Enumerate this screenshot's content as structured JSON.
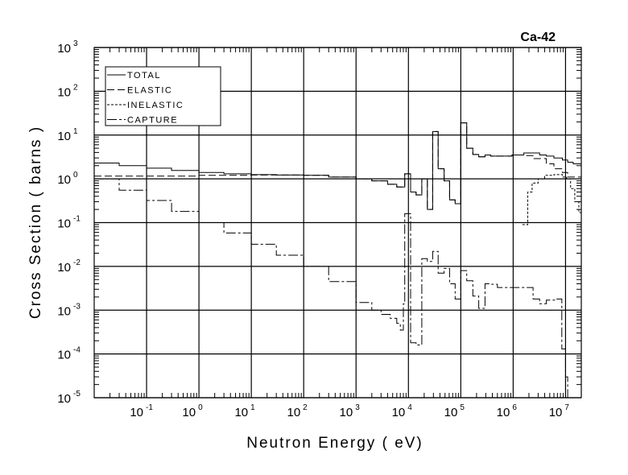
{
  "chart_data": {
    "type": "line",
    "title": "Ca-42",
    "xlabel": "Neutron Energy ( eV)",
    "ylabel": "Cross Section ( barns )",
    "xscale": "log",
    "yscale": "log",
    "xlim": [
      0.01,
      20000000
    ],
    "ylim": [
      1e-05,
      1000
    ],
    "x_ticks": [
      {
        "base": "10",
        "exp": "-1",
        "value": 0.1
      },
      {
        "base": "10",
        "exp": "0",
        "value": 1
      },
      {
        "base": "10",
        "exp": "1",
        "value": 10
      },
      {
        "base": "10",
        "exp": "2",
        "value": 100
      },
      {
        "base": "10",
        "exp": "3",
        "value": 1000
      },
      {
        "base": "10",
        "exp": "4",
        "value": 10000
      },
      {
        "base": "10",
        "exp": "5",
        "value": 100000
      },
      {
        "base": "10",
        "exp": "6",
        "value": 1000000
      },
      {
        "base": "10",
        "exp": "7",
        "value": 10000000
      }
    ],
    "y_ticks": [
      {
        "base": "10",
        "exp": "3",
        "value": 1000
      },
      {
        "base": "10",
        "exp": "2",
        "value": 100
      },
      {
        "base": "10",
        "exp": "1",
        "value": 10
      },
      {
        "base": "10",
        "exp": "0",
        "value": 1
      },
      {
        "base": "10",
        "exp": "-1",
        "value": 0.1
      },
      {
        "base": "10",
        "exp": "-2",
        "value": 0.01
      },
      {
        "base": "10",
        "exp": "-3",
        "value": 0.001
      },
      {
        "base": "10",
        "exp": "-4",
        "value": 0.0001
      },
      {
        "base": "10",
        "exp": "-5",
        "value": 1e-05
      }
    ],
    "grid": true,
    "legend_position": "top-left",
    "series": [
      {
        "name": "TOTAL",
        "style": "solid",
        "points": [
          [
            0.01,
            2.3
          ],
          [
            0.03,
            2.0
          ],
          [
            0.1,
            1.75
          ],
          [
            0.3,
            1.55
          ],
          [
            1,
            1.4
          ],
          [
            3,
            1.3
          ],
          [
            10,
            1.25
          ],
          [
            30,
            1.22
          ],
          [
            100,
            1.2
          ],
          [
            300,
            1.1
          ],
          [
            1000,
            1.0
          ],
          [
            2000,
            0.9
          ],
          [
            4000,
            0.75
          ],
          [
            6000,
            0.65
          ],
          [
            8500,
            1.3
          ],
          [
            11000,
            0.5
          ],
          [
            14000,
            0.43
          ],
          [
            18000,
            1.0
          ],
          [
            23000,
            0.2
          ],
          [
            29000,
            12
          ],
          [
            37000,
            1.7
          ],
          [
            48000,
            0.9
          ],
          [
            61000,
            0.33
          ],
          [
            78000,
            0.27
          ],
          [
            100000,
            19
          ],
          [
            130000,
            5
          ],
          [
            170000,
            3.6
          ],
          [
            220000,
            3.2
          ],
          [
            290000,
            3.5
          ],
          [
            370000,
            3.3
          ],
          [
            950000,
            3.5
          ],
          [
            1600000,
            3.9
          ],
          [
            3200000,
            3.5
          ],
          [
            4300000,
            3.3
          ],
          [
            6000000,
            3.0
          ],
          [
            8700000,
            2.7
          ],
          [
            11000000,
            2.4
          ],
          [
            14000000,
            2.2
          ],
          [
            20000000,
            2.2
          ]
        ]
      },
      {
        "name": "ELASTIC",
        "style": "dashed",
        "points": [
          [
            0.01,
            1.15
          ],
          [
            0.1,
            1.15
          ],
          [
            1,
            1.2
          ],
          [
            10,
            1.22
          ],
          [
            100,
            1.2
          ],
          [
            300,
            1.1
          ],
          [
            1000,
            1.0
          ],
          [
            2000,
            0.9
          ],
          [
            4000,
            0.75
          ],
          [
            6000,
            0.65
          ],
          [
            8500,
            1.3
          ],
          [
            11000,
            0.5
          ],
          [
            14000,
            0.43
          ],
          [
            18000,
            1.0
          ],
          [
            23000,
            0.2
          ],
          [
            29000,
            12
          ],
          [
            37000,
            1.7
          ],
          [
            48000,
            0.9
          ],
          [
            61000,
            0.33
          ],
          [
            78000,
            0.27
          ],
          [
            100000,
            19
          ],
          [
            130000,
            5
          ],
          [
            170000,
            3.6
          ],
          [
            220000,
            3.2
          ],
          [
            290000,
            3.5
          ],
          [
            370000,
            3.3
          ],
          [
            950000,
            3.5
          ],
          [
            1600000,
            3.4
          ],
          [
            2400000,
            2.9
          ],
          [
            4300000,
            2.2
          ],
          [
            6000000,
            1.7
          ],
          [
            8700000,
            1.4
          ],
          [
            11000000,
            1.1
          ],
          [
            20000000,
            1.1
          ]
        ]
      },
      {
        "name": "INELASTIC",
        "style": "dotted",
        "points": [
          [
            1500000,
            0.09
          ],
          [
            1900000,
            0.5
          ],
          [
            2300000,
            0.8
          ],
          [
            3000000,
            1.0
          ],
          [
            4000000,
            1.2
          ],
          [
            6000000,
            1.25
          ],
          [
            8700000,
            1.1
          ],
          [
            10500000,
            1.0
          ],
          [
            12500000,
            0.6
          ],
          [
            15000000,
            0.3
          ],
          [
            18000000,
            0.17
          ],
          [
            20000000,
            0.17
          ]
        ]
      },
      {
        "name": "CAPTURE",
        "style": "dashdot",
        "points": [
          [
            0.01,
            1.0
          ],
          [
            0.03,
            0.55
          ],
          [
            0.1,
            0.32
          ],
          [
            0.3,
            0.18
          ],
          [
            1,
            0.1
          ],
          [
            3,
            0.058
          ],
          [
            10,
            0.032
          ],
          [
            30,
            0.018
          ],
          [
            100,
            0.01
          ],
          [
            300,
            0.0045
          ],
          [
            1000,
            0.0015
          ],
          [
            2000,
            0.001
          ],
          [
            3000,
            0.0008
          ],
          [
            4500,
            0.00065
          ],
          [
            6000,
            0.0005
          ],
          [
            7000,
            0.00035
          ],
          [
            8000,
            0.0014
          ],
          [
            8500,
            0.16
          ],
          [
            11000,
            0.00018
          ],
          [
            14000,
            0.00016
          ],
          [
            18000,
            0.015
          ],
          [
            23000,
            0.013
          ],
          [
            29000,
            0.022
          ],
          [
            37000,
            0.007
          ],
          [
            48000,
            0.009
          ],
          [
            61000,
            0.004
          ],
          [
            78000,
            0.0018
          ],
          [
            100000,
            0.008
          ],
          [
            130000,
            0.0047
          ],
          [
            170000,
            0.0021
          ],
          [
            220000,
            0.0011
          ],
          [
            290000,
            0.004
          ],
          [
            370000,
            0.0039
          ],
          [
            500000,
            0.0033
          ],
          [
            1600000,
            0.0033
          ],
          [
            2400000,
            0.0018
          ],
          [
            3200000,
            0.0014
          ],
          [
            4300000,
            0.0017
          ],
          [
            6700000,
            0.0018
          ],
          [
            8500000,
            0.00013
          ],
          [
            10000000,
            3e-05
          ],
          [
            11000000,
            1e-05
          ]
        ]
      }
    ]
  }
}
